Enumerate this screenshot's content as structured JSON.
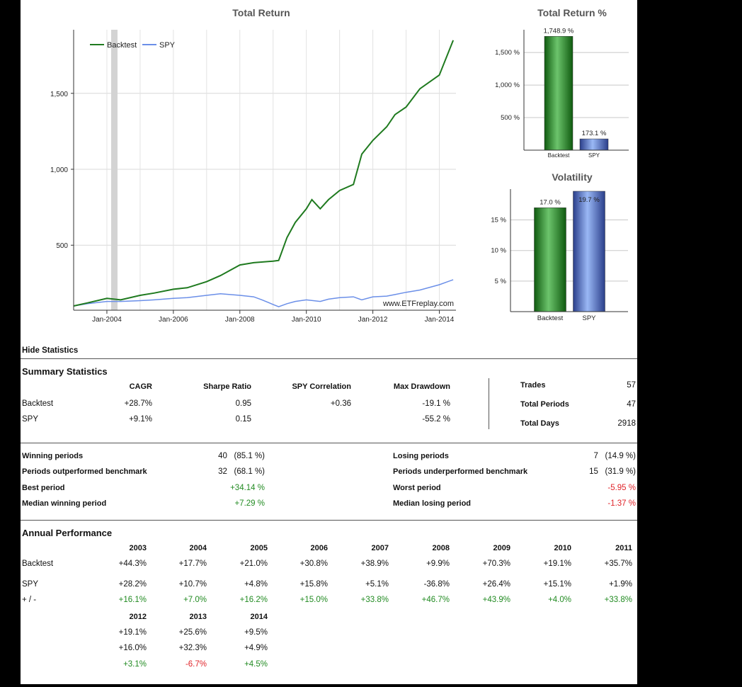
{
  "colors": {
    "backtest": "#1f7a1f",
    "spy": "#6b8fe8",
    "positive": "#228b22",
    "negative": "#e0242a"
  },
  "main_chart": {
    "title": "Total Return",
    "legend": [
      "Backtest",
      "SPY"
    ],
    "watermark": "www.ETFreplay.com",
    "y_ticks": [
      "500",
      "1,000",
      "1,500"
    ],
    "x_ticks": [
      "Jan-2004",
      "Jan-2006",
      "Jan-2008",
      "Jan-2010",
      "Jan-2012",
      "Jan-2014"
    ]
  },
  "return_chart": {
    "title": "Total Return %",
    "y_ticks": [
      "500 %",
      "1,000 %",
      "1,500 %"
    ],
    "labels": [
      "1,748.9 %",
      "173.1 %"
    ],
    "categories": [
      "Backtest",
      "SPY"
    ]
  },
  "vol_chart": {
    "title": "Volatility",
    "y_ticks": [
      "5 %",
      "10 %",
      "15 %"
    ],
    "labels": [
      "17.0 %",
      "19.7 %"
    ],
    "categories": [
      "Backtest",
      "SPY"
    ]
  },
  "chart_data": [
    {
      "type": "line",
      "title": "Total Return",
      "legend_position": "top-left",
      "ylim": [
        100,
        1900
      ],
      "series": [
        {
          "name": "Backtest",
          "x": [
            "2003-01",
            "2003-06",
            "2004-01",
            "2004-06",
            "2005-01",
            "2005-06",
            "2006-01",
            "2006-06",
            "2007-01",
            "2007-06",
            "2008-01",
            "2008-06",
            "2009-01",
            "2009-03",
            "2009-06",
            "2009-09",
            "2010-01",
            "2010-03",
            "2010-06",
            "2010-09",
            "2011-01",
            "2011-06",
            "2011-09",
            "2012-01",
            "2012-06",
            "2012-09",
            "2013-01",
            "2013-06",
            "2014-01",
            "2014-06"
          ],
          "values": [
            100,
            120,
            150,
            140,
            170,
            185,
            210,
            220,
            260,
            300,
            370,
            385,
            395,
            400,
            550,
            650,
            740,
            800,
            740,
            800,
            860,
            900,
            1100,
            1190,
            1280,
            1360,
            1410,
            1530,
            1620,
            1849
          ]
        },
        {
          "name": "SPY",
          "x": [
            "2003-01",
            "2003-06",
            "2004-01",
            "2004-06",
            "2005-01",
            "2005-06",
            "2006-01",
            "2006-06",
            "2007-01",
            "2007-06",
            "2008-01",
            "2008-06",
            "2008-09",
            "2009-01",
            "2009-03",
            "2009-06",
            "2009-09",
            "2010-01",
            "2010-06",
            "2010-09",
            "2011-01",
            "2011-06",
            "2011-09",
            "2012-01",
            "2012-06",
            "2012-09",
            "2013-01",
            "2013-06",
            "2014-01",
            "2014-06"
          ],
          "values": [
            100,
            115,
            130,
            130,
            135,
            140,
            150,
            155,
            170,
            180,
            170,
            160,
            140,
            110,
            95,
            115,
            130,
            140,
            130,
            145,
            155,
            160,
            140,
            160,
            165,
            175,
            190,
            205,
            240,
            273
          ]
        }
      ]
    },
    {
      "type": "bar",
      "title": "Total Return %",
      "categories": [
        "Backtest",
        "SPY"
      ],
      "values": [
        1748.9,
        173.1
      ],
      "ylim": [
        0,
        1850
      ]
    },
    {
      "type": "bar",
      "title": "Volatility",
      "categories": [
        "Backtest",
        "SPY"
      ],
      "values": [
        17.0,
        19.7
      ],
      "ylim": [
        0,
        19.7
      ]
    }
  ],
  "stats": {
    "hide_label": "Hide Statistics",
    "summary_title": "Summary Statistics",
    "summary_headers": [
      "CAGR",
      "Sharpe Ratio",
      "SPY Correlation",
      "Max Drawdown"
    ],
    "summary_rows": [
      {
        "name": "Backtest",
        "cagr": "+28.7%",
        "sharpe": "0.95",
        "corr": "+0.36",
        "dd": "-19.1 %"
      },
      {
        "name": "SPY",
        "cagr": "+9.1%",
        "sharpe": "0.15",
        "corr": "",
        "dd": "-55.2 %"
      }
    ],
    "side": [
      {
        "label": "Trades",
        "value": "57"
      },
      {
        "label": "Total Periods",
        "value": "47"
      },
      {
        "label": "Total Days",
        "value": "2918"
      }
    ],
    "periods_left": [
      {
        "label": "Winning periods",
        "value": "40   (85.1 %)"
      },
      {
        "label": "Periods outperformed benchmark",
        "value": "32   (68.1 %)"
      },
      {
        "label": "Best period",
        "value": "+34.14 %"
      },
      {
        "label": "Median winning period",
        "value": "+7.29 %"
      }
    ],
    "periods_right": [
      {
        "label": "Losing periods",
        "value": "7   (14.9 %)"
      },
      {
        "label": "Periods underperformed benchmark",
        "value": "15   (31.9 %)"
      },
      {
        "label": "Worst period",
        "value": "-5.95 %"
      },
      {
        "label": "Median losing period",
        "value": "-1.37 %"
      }
    ],
    "annual_title": "Annual Performance",
    "annual_years_1": [
      "2003",
      "2004",
      "2005",
      "2006",
      "2007",
      "2008",
      "2009",
      "2010",
      "2011"
    ],
    "annual_row_labels": [
      "Backtest",
      "SPY",
      "+ / -"
    ],
    "annual_backtest_1": [
      "+44.3%",
      "+17.7%",
      "+21.0%",
      "+30.8%",
      "+38.9%",
      "+9.9%",
      "+70.3%",
      "+19.1%",
      "+35.7%"
    ],
    "annual_spy_1": [
      "+28.2%",
      "+10.7%",
      "+4.8%",
      "+15.8%",
      "+5.1%",
      "-36.8%",
      "+26.4%",
      "+15.1%",
      "+1.9%"
    ],
    "annual_diff_1": [
      "+16.1%",
      "+7.0%",
      "+16.2%",
      "+15.0%",
      "+33.8%",
      "+46.7%",
      "+43.9%",
      "+4.0%",
      "+33.8%"
    ],
    "annual_years_2": [
      "2012",
      "2013",
      "2014"
    ],
    "annual_backtest_2": [
      "+19.1%",
      "+25.6%",
      "+9.5%"
    ],
    "annual_spy_2": [
      "+16.0%",
      "+32.3%",
      "+4.9%"
    ],
    "annual_diff_2": [
      "+3.1%",
      "-6.7%",
      "+4.5%"
    ]
  }
}
